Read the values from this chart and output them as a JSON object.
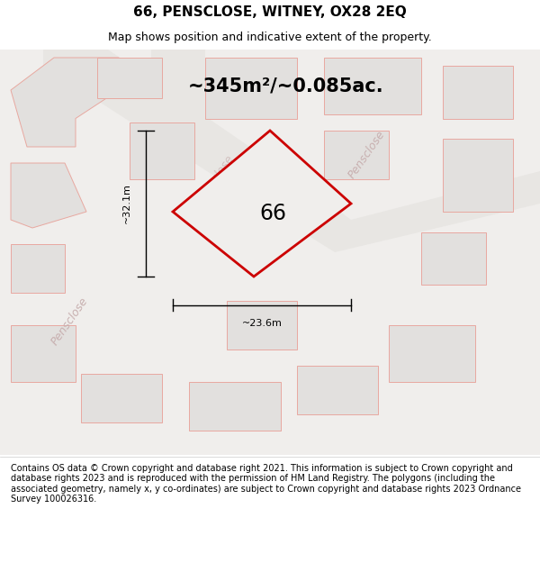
{
  "title": "66, PENSCLOSE, WITNEY, OX28 2EQ",
  "subtitle": "Map shows position and indicative extent of the property.",
  "area_text": "~345m²/~0.085ac.",
  "plot_label": "66",
  "dim_h": "~23.6m",
  "dim_v": "~32.1m",
  "footer": "Contains OS data © Crown copyright and database right 2021. This information is subject to Crown copyright and database rights 2023 and is reproduced with the permission of HM Land Registry. The polygons (including the associated geometry, namely x, y co-ordinates) are subject to Crown copyright and database rights 2023 Ordnance Survey 100026316.",
  "map_bg": "#f0eeec",
  "plot_fill": "#f0eeec",
  "plot_edge": "#cc0000",
  "building_fill": "#e2e0de",
  "building_edge": "#e8a8a0",
  "road_fill": "#f8f6f4",
  "title_fontsize": 11,
  "subtitle_fontsize": 9,
  "area_fontsize": 15,
  "footer_fontsize": 7,
  "street_color": "#c8b0b0",
  "street_fontsize": 9
}
